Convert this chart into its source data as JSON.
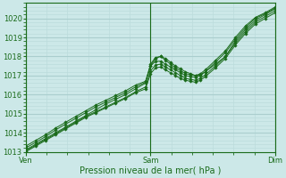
{
  "xlabel": "Pression niveau de la mer( hPa )",
  "bg_color": "#cce8e8",
  "grid_major_color": "#aacece",
  "grid_minor_color": "#bcdcdc",
  "line_color": "#1a6b1a",
  "marker_color": "#1a6b1a",
  "ylim": [
    1013.0,
    1020.8
  ],
  "yticks": [
    1013,
    1014,
    1015,
    1016,
    1017,
    1018,
    1019,
    1020
  ],
  "xtick_labels": [
    "Ven",
    "Sam",
    "Dim"
  ],
  "xtick_positions": [
    0.0,
    0.5,
    1.0
  ],
  "lines": [
    [
      0.0,
      1013.1,
      0.04,
      1013.4,
      0.08,
      1013.7,
      0.12,
      1014.0,
      0.16,
      1014.3,
      0.2,
      1014.6,
      0.24,
      1014.9,
      0.28,
      1015.2,
      0.32,
      1015.5,
      0.36,
      1015.75,
      0.4,
      1016.0,
      0.44,
      1016.3,
      0.48,
      1016.6,
      0.5,
      1017.5,
      0.52,
      1017.9,
      0.54,
      1018.0,
      0.56,
      1017.9,
      0.58,
      1017.7,
      0.6,
      1017.5,
      0.62,
      1017.35,
      0.64,
      1017.2,
      0.66,
      1017.1,
      0.68,
      1017.0,
      0.7,
      1017.05,
      0.72,
      1017.2,
      0.76,
      1017.6,
      0.8,
      1018.0,
      0.84,
      1018.8,
      0.88,
      1019.4,
      0.92,
      1019.9,
      0.96,
      1020.2,
      1.0,
      1020.5
    ],
    [
      0.0,
      1013.2,
      0.04,
      1013.5,
      0.08,
      1013.8,
      0.12,
      1014.15,
      0.16,
      1014.45,
      0.2,
      1014.75,
      0.24,
      1015.05,
      0.28,
      1015.35,
      0.32,
      1015.6,
      0.36,
      1015.85,
      0.4,
      1016.1,
      0.44,
      1016.4,
      0.48,
      1016.65,
      0.5,
      1017.6,
      0.52,
      1017.95,
      0.54,
      1018.0,
      0.56,
      1017.8,
      0.58,
      1017.6,
      0.6,
      1017.4,
      0.62,
      1017.25,
      0.64,
      1017.1,
      0.66,
      1017.05,
      0.68,
      1017.0,
      0.7,
      1017.1,
      0.72,
      1017.3,
      0.76,
      1017.8,
      0.8,
      1018.3,
      0.84,
      1019.0,
      0.88,
      1019.6,
      0.92,
      1020.05,
      0.96,
      1020.3,
      1.0,
      1020.6
    ],
    [
      0.0,
      1013.3,
      0.04,
      1013.6,
      0.08,
      1013.9,
      0.12,
      1014.25,
      0.16,
      1014.55,
      0.2,
      1014.85,
      0.24,
      1015.15,
      0.28,
      1015.45,
      0.32,
      1015.7,
      0.36,
      1015.95,
      0.4,
      1016.2,
      0.44,
      1016.5,
      0.48,
      1016.7,
      0.5,
      1017.5,
      0.52,
      1017.75,
      0.54,
      1017.75,
      0.56,
      1017.6,
      0.58,
      1017.45,
      0.6,
      1017.3,
      0.62,
      1017.15,
      0.64,
      1017.0,
      0.66,
      1016.95,
      0.68,
      1016.9,
      0.7,
      1017.0,
      0.72,
      1017.2,
      0.76,
      1017.7,
      0.8,
      1018.2,
      0.84,
      1018.9,
      0.88,
      1019.5,
      0.92,
      1020.0,
      0.96,
      1020.25,
      1.0,
      1020.55
    ],
    [
      0.0,
      1013.05,
      0.04,
      1013.35,
      0.08,
      1013.65,
      0.12,
      1013.95,
      0.16,
      1014.25,
      0.2,
      1014.55,
      0.24,
      1014.85,
      0.28,
      1015.1,
      0.32,
      1015.35,
      0.36,
      1015.6,
      0.4,
      1015.85,
      0.44,
      1016.15,
      0.48,
      1016.4,
      0.5,
      1017.25,
      0.52,
      1017.55,
      0.54,
      1017.6,
      0.56,
      1017.45,
      0.58,
      1017.3,
      0.6,
      1017.15,
      0.62,
      1017.0,
      0.64,
      1016.85,
      0.66,
      1016.8,
      0.68,
      1016.75,
      0.7,
      1016.85,
      0.72,
      1017.05,
      0.76,
      1017.5,
      0.8,
      1018.0,
      0.84,
      1018.7,
      0.88,
      1019.3,
      0.92,
      1019.8,
      0.96,
      1020.1,
      1.0,
      1020.4
    ],
    [
      0.0,
      1013.0,
      0.04,
      1013.3,
      0.08,
      1013.6,
      0.12,
      1013.9,
      0.16,
      1014.2,
      0.2,
      1014.5,
      0.24,
      1014.8,
      0.28,
      1015.05,
      0.32,
      1015.3,
      0.36,
      1015.55,
      0.4,
      1015.8,
      0.44,
      1016.1,
      0.48,
      1016.3,
      0.5,
      1017.1,
      0.52,
      1017.4,
      0.54,
      1017.45,
      0.56,
      1017.3,
      0.58,
      1017.15,
      0.6,
      1017.0,
      0.62,
      1016.85,
      0.64,
      1016.75,
      0.66,
      1016.7,
      0.68,
      1016.65,
      0.7,
      1016.75,
      0.72,
      1016.95,
      0.76,
      1017.4,
      0.8,
      1017.9,
      0.84,
      1018.6,
      0.88,
      1019.2,
      0.92,
      1019.7,
      0.96,
      1020.0,
      1.0,
      1020.3
    ]
  ]
}
